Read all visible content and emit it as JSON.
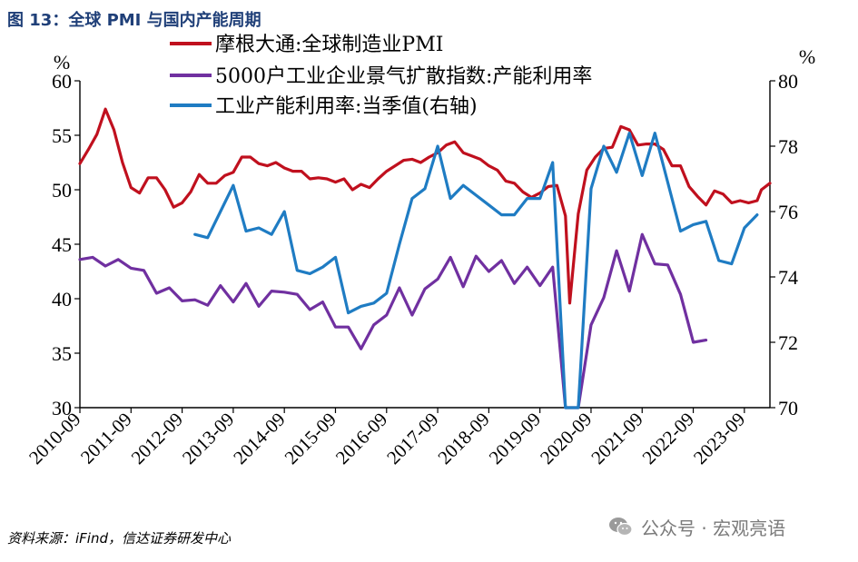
{
  "title": "图 13：全球 PMI 与国内产能周期",
  "source": "资料来源：iFind，信达证券研发中心",
  "watermark": "公众号 · 宏观亮语",
  "colors": {
    "red": "#c0101e",
    "purple": "#7030a0",
    "blue": "#1f7cc3",
    "title": "#1f3f78"
  },
  "chart_data": {
    "type": "line",
    "x_ticks": [
      "2010-09",
      "2011-09",
      "2012-09",
      "2013-09",
      "2014-09",
      "2015-09",
      "2016-09",
      "2017-09",
      "2018-09",
      "2019-09",
      "2020-09",
      "2021-09",
      "2022-09",
      "2023-09"
    ],
    "y_left": {
      "label": "%",
      "min": 30,
      "max": 60,
      "ticks": [
        30,
        35,
        40,
        45,
        50,
        55,
        60
      ]
    },
    "y_right": {
      "label": "%",
      "min": 70,
      "max": 80,
      "ticks": [
        70,
        72,
        74,
        76,
        78,
        80
      ]
    },
    "legend": [
      "摩根大通:全球制造业PMI",
      "5000户工业企业景气扩散指数:产能利用率",
      "工业产能利用率:当季值(右轴)"
    ],
    "series": [
      {
        "name": "摩根大通:全球制造业PMI",
        "axis": "left",
        "color": "#c0101e",
        "points": [
          [
            "2010-09",
            52.4
          ],
          [
            "2010-11",
            53.7
          ],
          [
            "2011-01",
            55.1
          ],
          [
            "2011-03",
            57.4
          ],
          [
            "2011-05",
            55.5
          ],
          [
            "2011-07",
            52.5
          ],
          [
            "2011-09",
            50.2
          ],
          [
            "2011-11",
            49.7
          ],
          [
            "2012-01",
            51.1
          ],
          [
            "2012-03",
            51.1
          ],
          [
            "2012-05",
            50.0
          ],
          [
            "2012-07",
            48.4
          ],
          [
            "2012-09",
            48.8
          ],
          [
            "2012-11",
            49.8
          ],
          [
            "2013-01",
            51.4
          ],
          [
            "2013-03",
            50.6
          ],
          [
            "2013-05",
            50.6
          ],
          [
            "2013-07",
            51.3
          ],
          [
            "2013-09",
            51.6
          ],
          [
            "2013-11",
            53.0
          ],
          [
            "2014-01",
            53.0
          ],
          [
            "2014-03",
            52.4
          ],
          [
            "2014-05",
            52.2
          ],
          [
            "2014-07",
            52.5
          ],
          [
            "2014-09",
            52.0
          ],
          [
            "2014-11",
            51.7
          ],
          [
            "2015-01",
            51.7
          ],
          [
            "2015-03",
            51.0
          ],
          [
            "2015-05",
            51.1
          ],
          [
            "2015-07",
            51.0
          ],
          [
            "2015-09",
            50.7
          ],
          [
            "2015-11",
            51.0
          ],
          [
            "2016-01",
            50.0
          ],
          [
            "2016-03",
            50.5
          ],
          [
            "2016-05",
            50.2
          ],
          [
            "2016-07",
            51.0
          ],
          [
            "2016-09",
            51.7
          ],
          [
            "2016-11",
            52.2
          ],
          [
            "2017-01",
            52.7
          ],
          [
            "2017-03",
            52.8
          ],
          [
            "2017-05",
            52.5
          ],
          [
            "2017-07",
            53.0
          ],
          [
            "2017-09",
            53.4
          ],
          [
            "2017-11",
            54.1
          ],
          [
            "2018-01",
            54.4
          ],
          [
            "2018-03",
            53.4
          ],
          [
            "2018-05",
            53.1
          ],
          [
            "2018-07",
            52.8
          ],
          [
            "2018-09",
            52.2
          ],
          [
            "2018-11",
            51.8
          ],
          [
            "2019-01",
            50.8
          ],
          [
            "2019-03",
            50.6
          ],
          [
            "2019-05",
            49.8
          ],
          [
            "2019-07",
            49.3
          ],
          [
            "2019-09",
            49.7
          ],
          [
            "2019-11",
            50.3
          ],
          [
            "2020-01",
            50.4
          ],
          [
            "2020-03",
            47.6
          ],
          [
            "2020-04",
            39.6
          ],
          [
            "2020-06",
            47.8
          ],
          [
            "2020-08",
            51.8
          ],
          [
            "2020-10",
            53.0
          ],
          [
            "2020-12",
            53.8
          ],
          [
            "2021-02",
            53.9
          ],
          [
            "2021-04",
            55.8
          ],
          [
            "2021-06",
            55.5
          ],
          [
            "2021-08",
            54.1
          ],
          [
            "2021-10",
            54.2
          ],
          [
            "2021-12",
            54.2
          ],
          [
            "2022-02",
            53.7
          ],
          [
            "2022-04",
            52.2
          ],
          [
            "2022-06",
            52.2
          ],
          [
            "2022-08",
            50.3
          ],
          [
            "2022-10",
            49.4
          ],
          [
            "2022-12",
            48.6
          ],
          [
            "2023-02",
            49.9
          ],
          [
            "2023-04",
            49.6
          ],
          [
            "2023-06",
            48.8
          ],
          [
            "2023-08",
            49.0
          ],
          [
            "2023-10",
            48.8
          ],
          [
            "2023-12",
            49.0
          ],
          [
            "2024-01",
            50.0
          ],
          [
            "2024-03",
            50.6
          ]
        ]
      },
      {
        "name": "5000户工业企业景气扩散指数:产能利用率",
        "axis": "left",
        "color": "#7030a0",
        "points": [
          [
            "2010-09",
            43.6
          ],
          [
            "2010-12",
            43.8
          ],
          [
            "2011-03",
            43.0
          ],
          [
            "2011-06",
            43.6
          ],
          [
            "2011-09",
            42.8
          ],
          [
            "2011-12",
            42.6
          ],
          [
            "2012-03",
            40.5
          ],
          [
            "2012-06",
            41.0
          ],
          [
            "2012-09",
            39.8
          ],
          [
            "2012-12",
            39.9
          ],
          [
            "2013-03",
            39.4
          ],
          [
            "2013-06",
            41.2
          ],
          [
            "2013-09",
            39.7
          ],
          [
            "2013-12",
            41.4
          ],
          [
            "2014-03",
            39.3
          ],
          [
            "2014-06",
            40.7
          ],
          [
            "2014-09",
            40.6
          ],
          [
            "2014-12",
            40.4
          ],
          [
            "2015-03",
            39.0
          ],
          [
            "2015-06",
            39.7
          ],
          [
            "2015-09",
            37.4
          ],
          [
            "2015-12",
            37.4
          ],
          [
            "2016-03",
            35.4
          ],
          [
            "2016-06",
            37.6
          ],
          [
            "2016-09",
            38.5
          ],
          [
            "2016-12",
            41.0
          ],
          [
            "2017-03",
            38.5
          ],
          [
            "2017-06",
            40.9
          ],
          [
            "2017-09",
            41.8
          ],
          [
            "2017-12",
            43.8
          ],
          [
            "2018-03",
            41.1
          ],
          [
            "2018-06",
            43.9
          ],
          [
            "2018-09",
            42.5
          ],
          [
            "2018-12",
            43.5
          ],
          [
            "2019-03",
            41.4
          ],
          [
            "2019-06",
            42.9
          ],
          [
            "2019-09",
            41.2
          ],
          [
            "2019-12",
            42.9
          ],
          [
            "2020-03",
            30.0
          ],
          [
            "2020-06",
            30.0
          ],
          [
            "2020-09",
            37.6
          ],
          [
            "2020-12",
            40.1
          ],
          [
            "2021-03",
            44.4
          ],
          [
            "2021-06",
            40.7
          ],
          [
            "2021-09",
            45.9
          ],
          [
            "2021-12",
            43.2
          ],
          [
            "2022-03",
            43.1
          ],
          [
            "2022-06",
            40.4
          ],
          [
            "2022-09",
            36.0
          ],
          [
            "2022-12",
            36.2
          ]
        ]
      },
      {
        "name": "工业产能利用率:当季值(右轴)",
        "axis": "right",
        "color": "#1f7cc3",
        "points": [
          [
            "2012-12",
            75.3
          ],
          [
            "2013-03",
            75.2
          ],
          [
            "2013-06",
            76.0
          ],
          [
            "2013-09",
            76.8
          ],
          [
            "2013-12",
            75.4
          ],
          [
            "2014-03",
            75.5
          ],
          [
            "2014-06",
            75.3
          ],
          [
            "2014-09",
            76.0
          ],
          [
            "2014-12",
            74.2
          ],
          [
            "2015-03",
            74.1
          ],
          [
            "2015-06",
            74.3
          ],
          [
            "2015-09",
            74.6
          ],
          [
            "2015-12",
            72.9
          ],
          [
            "2016-03",
            73.1
          ],
          [
            "2016-06",
            73.2
          ],
          [
            "2016-09",
            73.5
          ],
          [
            "2016-12",
            75.0
          ],
          [
            "2017-03",
            76.4
          ],
          [
            "2017-06",
            76.7
          ],
          [
            "2017-09",
            78.0
          ],
          [
            "2017-12",
            76.4
          ],
          [
            "2018-03",
            76.8
          ],
          [
            "2018-06",
            76.5
          ],
          [
            "2018-09",
            76.2
          ],
          [
            "2018-12",
            75.9
          ],
          [
            "2019-03",
            75.9
          ],
          [
            "2019-06",
            76.4
          ],
          [
            "2019-09",
            76.4
          ],
          [
            "2019-12",
            77.5
          ],
          [
            "2020-03",
            70.0
          ],
          [
            "2020-06",
            70.0
          ],
          [
            "2020-09",
            76.7
          ],
          [
            "2020-12",
            78.0
          ],
          [
            "2021-03",
            77.2
          ],
          [
            "2021-06",
            78.4
          ],
          [
            "2021-09",
            77.1
          ],
          [
            "2021-12",
            78.4
          ],
          [
            "2022-03",
            76.9
          ],
          [
            "2022-06",
            75.4
          ],
          [
            "2022-09",
            75.6
          ],
          [
            "2022-12",
            75.7
          ],
          [
            "2023-03",
            74.5
          ],
          [
            "2023-06",
            74.4
          ],
          [
            "2023-09",
            75.5
          ],
          [
            "2023-12",
            75.9
          ]
        ]
      }
    ]
  }
}
